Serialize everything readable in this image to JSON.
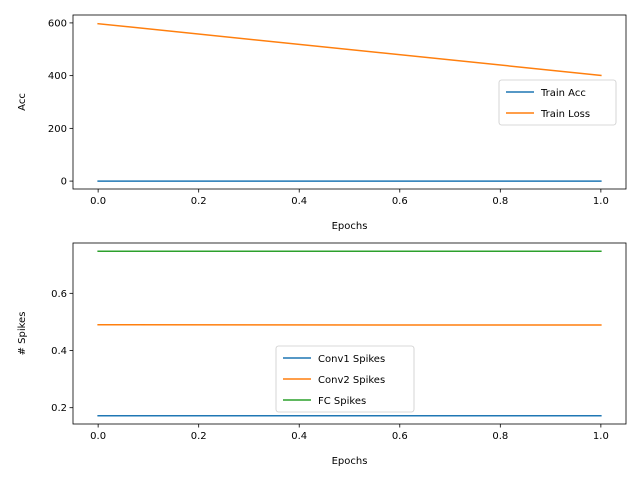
{
  "chart_data": [
    {
      "type": "line",
      "xlabel": "Epochs",
      "ylabel": "Acc",
      "x": [
        0.0,
        1.0
      ],
      "xlim": [
        -0.05,
        1.05
      ],
      "ylim": [
        -30,
        630
      ],
      "xticks": [
        0.0,
        0.2,
        0.4,
        0.6,
        0.8,
        1.0
      ],
      "xtick_labels": [
        "0.0",
        "0.2",
        "0.4",
        "0.6",
        "0.8",
        "1.0"
      ],
      "yticks": [
        0,
        200,
        400,
        600
      ],
      "ytick_labels": [
        "0",
        "200",
        "400",
        "600"
      ],
      "grid": false,
      "legend_position": "center-right",
      "series": [
        {
          "name": "Train Acc",
          "color": "#1f77b4",
          "values": [
            0.0,
            0.0
          ]
        },
        {
          "name": "Train Loss",
          "color": "#ff7f0e",
          "values": [
            597,
            401
          ]
        }
      ]
    },
    {
      "type": "line",
      "xlabel": "Epochs",
      "ylabel": "# Spikes",
      "x": [
        0.0,
        1.0
      ],
      "xlim": [
        -0.05,
        1.05
      ],
      "ylim": [
        0.143,
        0.776
      ],
      "xticks": [
        0.0,
        0.2,
        0.4,
        0.6,
        0.8,
        1.0
      ],
      "xtick_labels": [
        "0.0",
        "0.2",
        "0.4",
        "0.6",
        "0.8",
        "1.0"
      ],
      "yticks": [
        0.2,
        0.4,
        0.6
      ],
      "ytick_labels": [
        "0.2",
        "0.4",
        "0.6"
      ],
      "grid": false,
      "legend_position": "lower-center",
      "series": [
        {
          "name": "Conv1 Spikes",
          "color": "#1f77b4",
          "values": [
            0.172,
            0.172
          ]
        },
        {
          "name": "Conv2 Spikes",
          "color": "#ff7f0e",
          "values": [
            0.49,
            0.489
          ]
        },
        {
          "name": "FC Spikes",
          "color": "#2ca02c",
          "values": [
            0.747,
            0.747
          ]
        }
      ]
    }
  ]
}
